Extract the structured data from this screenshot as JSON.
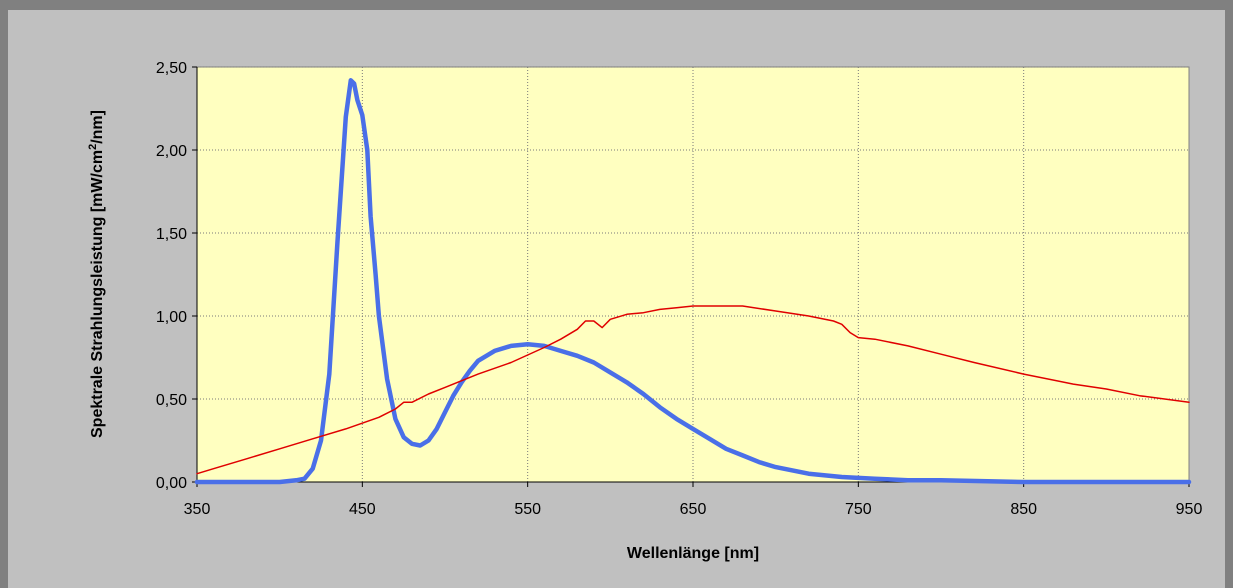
{
  "chart_data": {
    "type": "line",
    "xlabel": "Wellenlänge [nm]",
    "ylabel_parts": [
      "Spektrale Strahlungsleistung [mW/cm",
      "2",
      "/nm]"
    ],
    "xlim": [
      350,
      950
    ],
    "ylim": [
      0,
      2.5
    ],
    "x_ticks": [
      350,
      450,
      550,
      650,
      750,
      850,
      950
    ],
    "x_tick_labels": [
      "350",
      "450",
      "550",
      "650",
      "750",
      "850",
      "950"
    ],
    "y_ticks": [
      0,
      0.5,
      1.0,
      1.5,
      2.0,
      2.5
    ],
    "y_tick_labels": [
      "0,00",
      "0,50",
      "1,00",
      "1,50",
      "2,00",
      "2,50"
    ],
    "grid": true,
    "plot_background": "#ffffc0",
    "chart_background": "#c0c0c0",
    "series": [
      {
        "color": "#4a6fe8",
        "x": [
          350,
          400,
          410,
          415,
          420,
          425,
          430,
          435,
          440,
          443,
          445,
          447,
          450,
          453,
          455,
          458,
          460,
          465,
          470,
          475,
          480,
          485,
          490,
          495,
          500,
          505,
          510,
          515,
          520,
          530,
          540,
          550,
          560,
          570,
          580,
          590,
          600,
          610,
          620,
          630,
          640,
          650,
          660,
          670,
          680,
          690,
          700,
          720,
          740,
          760,
          780,
          800,
          850,
          900,
          950
        ],
        "y": [
          0.0,
          0.0,
          0.01,
          0.02,
          0.08,
          0.25,
          0.65,
          1.45,
          2.2,
          2.42,
          2.4,
          2.3,
          2.21,
          2.0,
          1.6,
          1.25,
          1.0,
          0.62,
          0.38,
          0.27,
          0.23,
          0.22,
          0.25,
          0.32,
          0.42,
          0.52,
          0.6,
          0.67,
          0.73,
          0.79,
          0.82,
          0.83,
          0.82,
          0.79,
          0.76,
          0.72,
          0.66,
          0.6,
          0.53,
          0.45,
          0.38,
          0.32,
          0.26,
          0.2,
          0.16,
          0.12,
          0.09,
          0.05,
          0.03,
          0.02,
          0.01,
          0.01,
          0.0,
          0.0,
          0.0
        ]
      },
      {
        "color": "#e00000",
        "x": [
          350,
          360,
          380,
          400,
          420,
          440,
          460,
          470,
          475,
          480,
          490,
          500,
          520,
          540,
          560,
          570,
          580,
          585,
          590,
          595,
          600,
          610,
          620,
          630,
          640,
          650,
          660,
          670,
          680,
          700,
          720,
          735,
          740,
          745,
          750,
          760,
          780,
          800,
          820,
          850,
          880,
          900,
          920,
          950
        ],
        "y": [
          0.05,
          0.08,
          0.14,
          0.2,
          0.26,
          0.32,
          0.39,
          0.44,
          0.48,
          0.48,
          0.53,
          0.57,
          0.65,
          0.72,
          0.81,
          0.86,
          0.92,
          0.97,
          0.97,
          0.93,
          0.98,
          1.01,
          1.02,
          1.04,
          1.05,
          1.06,
          1.06,
          1.06,
          1.06,
          1.03,
          1.0,
          0.97,
          0.95,
          0.9,
          0.87,
          0.86,
          0.82,
          0.77,
          0.72,
          0.65,
          0.59,
          0.56,
          0.52,
          0.48
        ]
      }
    ]
  }
}
